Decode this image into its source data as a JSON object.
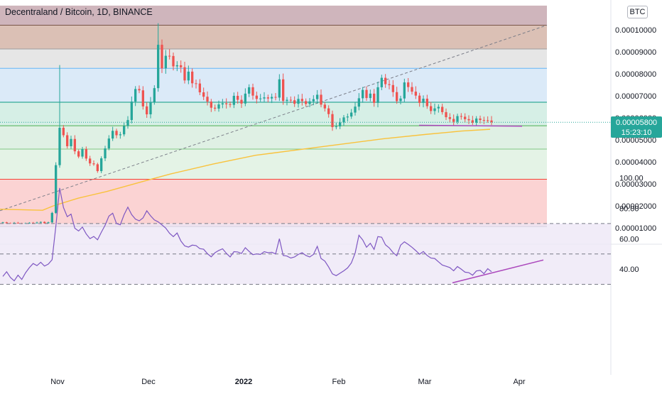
{
  "header": {
    "title": "Decentraland / Bitcoin, 1D, BINANCE",
    "currency": "BTC"
  },
  "price_badge": {
    "price": "0.00005800",
    "countdown": "15:23:10"
  },
  "colors": {
    "up": "#26a69a",
    "down": "#ef5350",
    "ma": "#f9c23c",
    "rsi": "#7e57c2",
    "trendline": "#ab47bc"
  },
  "chart_data": [
    {
      "type": "candlestick",
      "name": "price",
      "yaxis_ticks": [
        "0.00001000",
        "0.00002000",
        "0.00003000",
        "0.00004000",
        "0.00005000",
        "0.00006000",
        "0.00007000",
        "0.00008000",
        "0.00009000",
        "0.00010000"
      ],
      "ylim": [
        9.5e-06,
        0.000111
      ],
      "xaxis_ticks": [
        "Nov",
        "Dec",
        "2022",
        "Feb",
        "Mar",
        "Apr"
      ],
      "last_price": 5.8e-05,
      "fib_levels": [
        1.06e-05,
        3.21e-05,
        4.58e-05,
        5.64e-05,
        6.71e-05,
        8.25e-05,
        9.13e-05,
        0.0001021
      ],
      "ma_path": [
        [
          0,
          1.85e-05
        ],
        [
          60,
          1.8e-05
        ],
        [
          75,
          2e-05
        ],
        [
          110,
          2.35e-05
        ],
        [
          150,
          2.65e-05
        ],
        [
          200,
          3.1e-05
        ],
        [
          240,
          3.45e-05
        ],
        [
          300,
          3.9e-05
        ],
        [
          360,
          4.3e-05
        ],
        [
          420,
          4.55e-05
        ],
        [
          480,
          4.8e-05
        ],
        [
          540,
          5.05e-05
        ],
        [
          600,
          5.25e-05
        ],
        [
          650,
          5.4e-05
        ],
        [
          690,
          5.48e-05
        ]
      ],
      "trendlines": [
        {
          "style": "dashed",
          "from": [
            0,
            1.78e-05
          ],
          "to": [
            770,
            0.0001021
          ]
        },
        {
          "style": "solid",
          "from": [
            590,
            5.66e-05
          ],
          "to": [
            735,
            5.62e-05
          ]
        }
      ],
      "closes": [
        1.25e-05,
        1.21e-05,
        1.18e-05,
        1.23e-05,
        1.21e-05,
        1.18e-05,
        1.21e-05,
        1.23e-05,
        1.21e-05,
        1.24e-05,
        1.27e-05,
        1.21e-05,
        1.25e-05,
        1.68e-05,
        3.85e-05,
        5.55e-05,
        5.21e-05,
        4.71e-05,
        5.04e-05,
        4.48e-05,
        4.24e-05,
        4.58e-05,
        4.15e-05,
        3.93e-05,
        3.89e-05,
        3.58e-05,
        4.16e-05,
        4.61e-05,
        5.06e-05,
        5.41e-05,
        5.21e-05,
        5.25e-05,
        5.63e-05,
        5.9e-05,
        6.74e-05,
        7.31e-05,
        7.25e-05,
        6.52e-05,
        6.16e-05,
        6.72e-05,
        7.35e-05,
        9.32e-05,
        8.25e-05,
        8.82e-05,
        8.81e-05,
        8.34e-05,
        8.39e-05,
        8.3e-05,
        7.7e-05,
        8.1e-05,
        7.57e-05,
        7.56e-05,
        7.16e-05,
        6.96e-05,
        6.74e-05,
        6.46e-05,
        6.42e-05,
        6.61e-05,
        6.66e-05,
        6.62e-05,
        6.59e-05,
        7e-05,
        6.82e-05,
        6.65e-05,
        7.1e-05,
        7.39e-05,
        7.01e-05,
        6.86e-05,
        6.88e-05,
        6.93e-05,
        6.88e-05,
        6.95e-05,
        6.92e-05,
        7.75e-05,
        6.77e-05,
        6.82e-05,
        6.8e-05,
        6.64e-05,
        6.86e-05,
        6.76e-05,
        6.63e-05,
        6.75e-05,
        6.85e-05,
        7.05e-05,
        6.6e-05,
        6.43e-05,
        6.17e-05,
        5.58e-05,
        5.61e-05,
        5.79e-05,
        6.02e-05,
        6.06e-05,
        6.24e-05,
        6.51e-05,
        6.89e-05,
        7.27e-05,
        6.9e-05,
        7.1e-05,
        6.68e-05,
        7.39e-05,
        7.82e-05,
        7.53e-05,
        7.49e-05,
        7.17e-05,
        6.76e-05,
        6.88e-05,
        7.61e-05,
        7.4e-05,
        7.19e-05,
        7.01e-05,
        6.68e-05,
        6.87e-05,
        6.53e-05,
        6.31e-05,
        6.43e-05,
        6.5e-05,
        6.26e-05,
        6.03e-05,
        5.95e-05,
        5.82e-05,
        6.08e-05,
        6.05e-05,
        5.94e-05,
        5.89e-05,
        5.78e-05,
        5.97e-05,
        5.9e-05,
        5.89e-05,
        5.88e-05,
        5.8e-05
      ]
    },
    {
      "type": "line",
      "name": "RSI",
      "yaxis_ticks": [
        "40.00",
        "60.00",
        "80.00",
        "100.00"
      ],
      "ylim": [
        26,
        103
      ],
      "guide_lines": [
        70,
        50,
        30
      ],
      "trendline": {
        "from": [
          637,
          31
        ],
        "to": [
          765,
          46
        ]
      },
      "values": [
        35.2,
        38.3,
        34.5,
        32.3,
        36.0,
        33.2,
        37.6,
        41.0,
        43.7,
        42.3,
        44.5,
        42.0,
        43.3,
        46.2,
        68.4,
        93.4,
        80.6,
        74.5,
        76.2,
        66.9,
        65.1,
        67.7,
        63.2,
        60.1,
        61.5,
        59.3,
        64.3,
        68.9,
        74.9,
        76.8,
        70.0,
        69.2,
        75.8,
        80.8,
        75.9,
        72.9,
        71.8,
        73.7,
        78.4,
        75.1,
        72.4,
        71.1,
        69.1,
        67.0,
        63.6,
        61.4,
        63.8,
        58.5,
        55.3,
        54.5,
        55.8,
        55.5,
        53.5,
        53.1,
        50.2,
        48.1,
        50.8,
        52.3,
        53.4,
        50.4,
        48.0,
        51.5,
        51.3,
        50.3,
        54.1,
        51.7,
        49.5,
        50.0,
        49.7,
        51.5,
        50.8,
        51.1,
        50.0,
        60.0,
        49.0,
        48.6,
        47.3,
        48.0,
        49.7,
        50.8,
        49.0,
        48.0,
        49.7,
        55.0,
        47.0,
        45.3,
        41.4,
        36.9,
        35.7,
        37.3,
        38.9,
        40.8,
        44.1,
        50.6,
        62.3,
        59.2,
        54.4,
        57.0,
        53.0,
        61.4,
        61.0,
        56.0,
        54.0,
        50.9,
        48.8,
        55.8,
        58.0,
        56.3,
        54.4,
        52.2,
        49.8,
        51.6,
        49.0,
        47.3,
        47.0,
        44.8,
        42.7,
        41.9,
        41.0,
        38.9,
        41.7,
        40.0,
        38.0,
        37.7,
        36.0,
        38.8,
        39.2,
        37.0,
        40.3,
        38.3
      ]
    }
  ]
}
